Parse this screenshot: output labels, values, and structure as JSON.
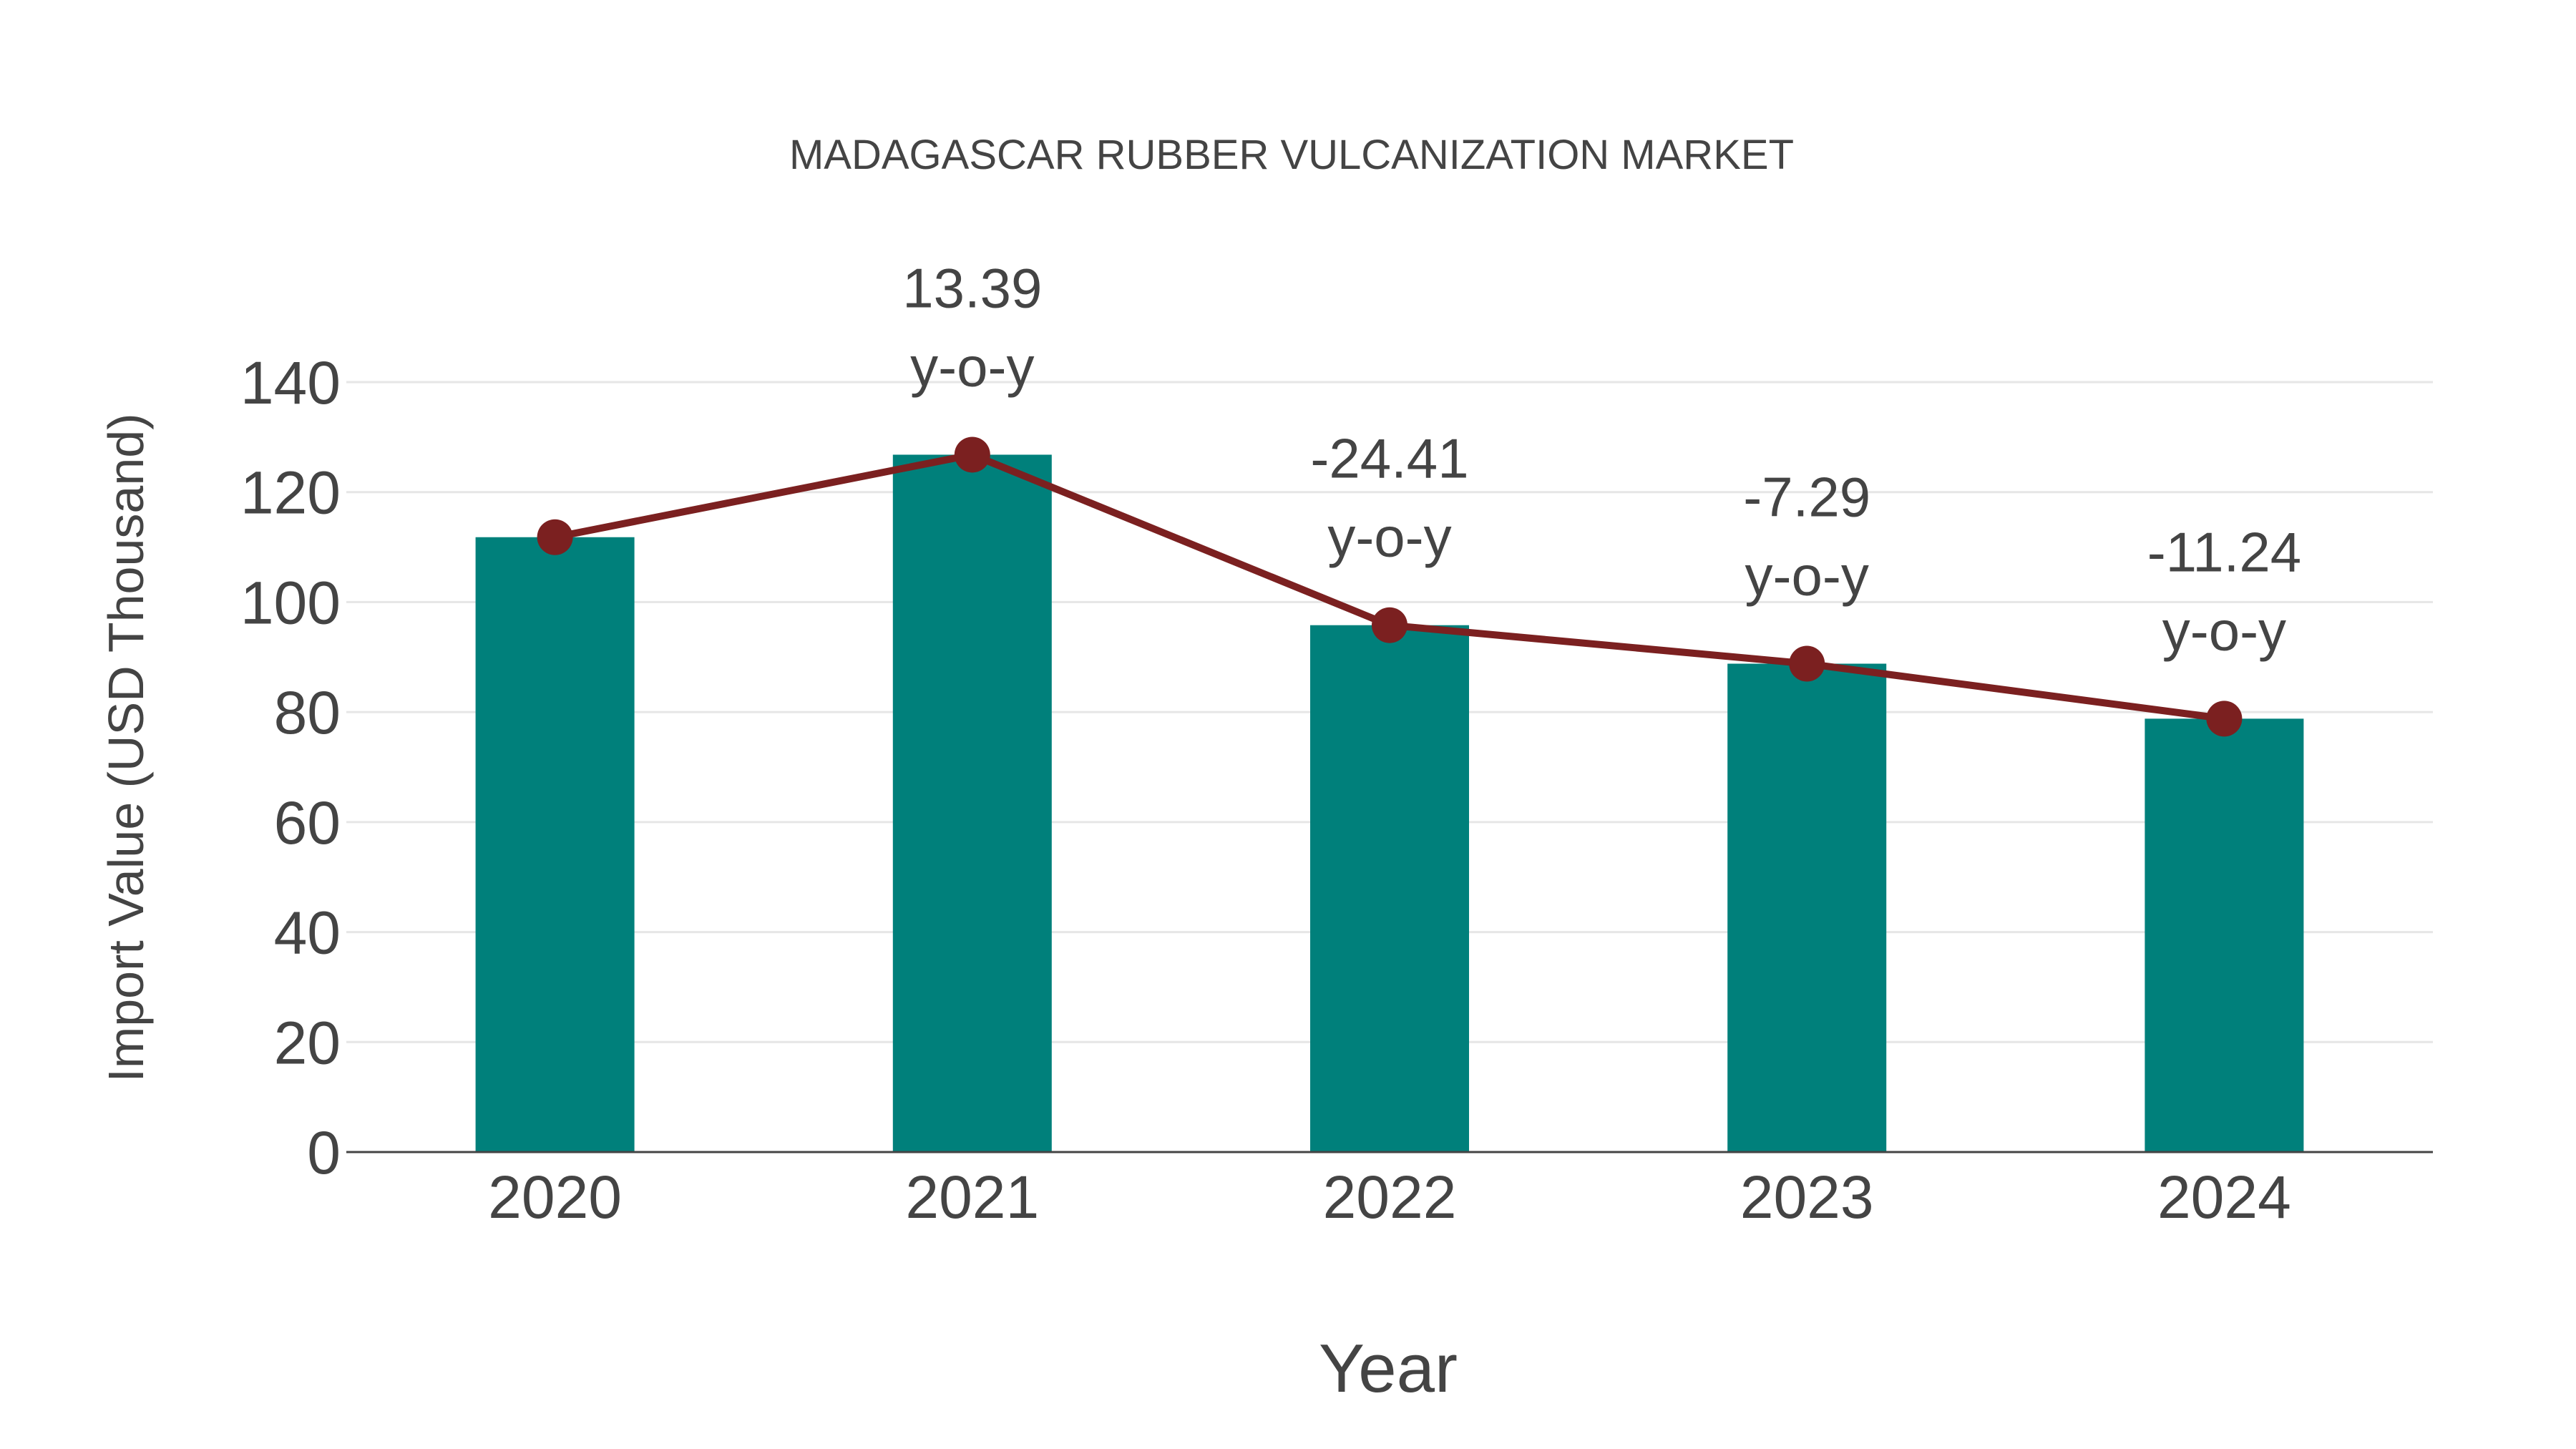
{
  "chart_data": {
    "type": "bar",
    "title": "MADAGASCAR RUBBER VULCANIZATION MARKET",
    "xlabel": "Year",
    "ylabel": "Import Value (USD Thousand)",
    "categories": [
      "2020",
      "2021",
      "2022",
      "2023",
      "2024"
    ],
    "series": [
      {
        "name": "Import Value",
        "type": "bar",
        "color": "#00807B",
        "values": [
          111.8,
          126.8,
          95.8,
          88.8,
          78.8
        ]
      },
      {
        "name": "Trend",
        "type": "line",
        "color": "#7B2020",
        "values": [
          111.8,
          126.8,
          95.8,
          88.8,
          78.8
        ]
      }
    ],
    "annotations": [
      {
        "category": "2021",
        "value": "13.39",
        "suffix": "y-o-y"
      },
      {
        "category": "2022",
        "value": "-24.41",
        "suffix": "y-o-y"
      },
      {
        "category": "2023",
        "value": "-7.29",
        "suffix": "y-o-y"
      },
      {
        "category": "2024",
        "value": "-11.24",
        "suffix": "y-o-y"
      }
    ],
    "yticks": [
      0,
      20,
      40,
      60,
      80,
      100,
      120,
      140
    ],
    "ylim": [
      0,
      140
    ],
    "grid": true,
    "legend": "none"
  },
  "colors": {
    "bar": "#00807B",
    "line": "#7B2020",
    "grid": "#E6E6E6",
    "axis": "#444444",
    "text": "#444444"
  }
}
